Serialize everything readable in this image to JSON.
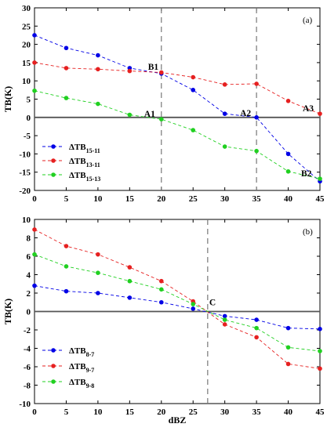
{
  "chart_data": [
    {
      "type": "line",
      "panel_label": "(a)",
      "xlabel": "",
      "ylabel": "TB(K)",
      "xlim": [
        0,
        45
      ],
      "ylim": [
        -20,
        30
      ],
      "xticks": [
        "0",
        "5",
        "10",
        "15",
        "20",
        "25",
        "30",
        "35",
        "40",
        "45"
      ],
      "yticks": [
        "30",
        "25",
        "20",
        "15",
        "10",
        "5",
        "0",
        "-5",
        "-10",
        "-15",
        "-20"
      ],
      "x": [
        0,
        5,
        10,
        15,
        20,
        25,
        30,
        35,
        40,
        45
      ],
      "series": [
        {
          "name": "ΔTB",
          "sub": "15-11",
          "color": "#0000e6",
          "values": [
            22.5,
            19.0,
            17.0,
            13.5,
            12.0,
            7.5,
            1.0,
            0.0,
            -10.0,
            -17.5
          ]
        },
        {
          "name": "ΔTB",
          "sub": "13-11",
          "color": "#e62020",
          "values": [
            15.0,
            13.5,
            13.2,
            12.7,
            12.3,
            11.0,
            9.0,
            9.2,
            4.5,
            1.0
          ]
        },
        {
          "name": "ΔTB",
          "sub": "15-13",
          "color": "#20d020",
          "values": [
            7.3,
            5.3,
            3.7,
            0.7,
            -0.5,
            -3.5,
            -8.0,
            -9.2,
            -14.8,
            -16.8
          ]
        }
      ],
      "vlines": [
        20,
        35
      ],
      "hline": 0,
      "annotations": [
        {
          "text": "B1",
          "x": 20,
          "y": 12.2
        },
        {
          "text": "A1",
          "x": 20,
          "y": -0.5
        },
        {
          "text": "A2",
          "x": 35,
          "y": 0
        },
        {
          "text": "A3",
          "x": 45,
          "y": 1
        },
        {
          "text": "B2",
          "x": 45,
          "y": -17
        }
      ],
      "legend": "bottom-left"
    },
    {
      "type": "line",
      "panel_label": "(b)",
      "xlabel": "dBZ",
      "ylabel": "TB(K)",
      "xlim": [
        0,
        45
      ],
      "ylim": [
        -10,
        10
      ],
      "xticks": [
        "0",
        "5",
        "10",
        "15",
        "20",
        "25",
        "30",
        "35",
        "40",
        "45"
      ],
      "yticks": [
        "10",
        "8",
        "6",
        "4",
        "2",
        "0",
        "-2",
        "-4",
        "-6",
        "-8",
        "-10"
      ],
      "x": [
        0,
        5,
        10,
        15,
        20,
        25,
        30,
        35,
        40,
        45
      ],
      "series": [
        {
          "name": "ΔTB",
          "sub": "8-7",
          "color": "#0000e6",
          "values": [
            2.8,
            2.2,
            2.0,
            1.5,
            1.0,
            0.3,
            -0.5,
            -0.9,
            -1.8,
            -1.9
          ]
        },
        {
          "name": "ΔTB",
          "sub": "9-7",
          "color": "#e62020",
          "values": [
            8.9,
            7.1,
            6.2,
            4.8,
            3.3,
            1.1,
            -1.4,
            -2.8,
            -5.7,
            -6.2
          ]
        },
        {
          "name": "ΔTB",
          "sub": "9-8",
          "color": "#20d020",
          "values": [
            6.2,
            4.9,
            4.2,
            3.3,
            2.4,
            0.8,
            -0.9,
            -1.8,
            -3.9,
            -4.3
          ]
        }
      ],
      "vlines": [
        27.3
      ],
      "hline": 0,
      "annotations": [
        {
          "text": "C",
          "x": 27.3,
          "y": 0
        }
      ],
      "legend": "bottom-left"
    }
  ]
}
